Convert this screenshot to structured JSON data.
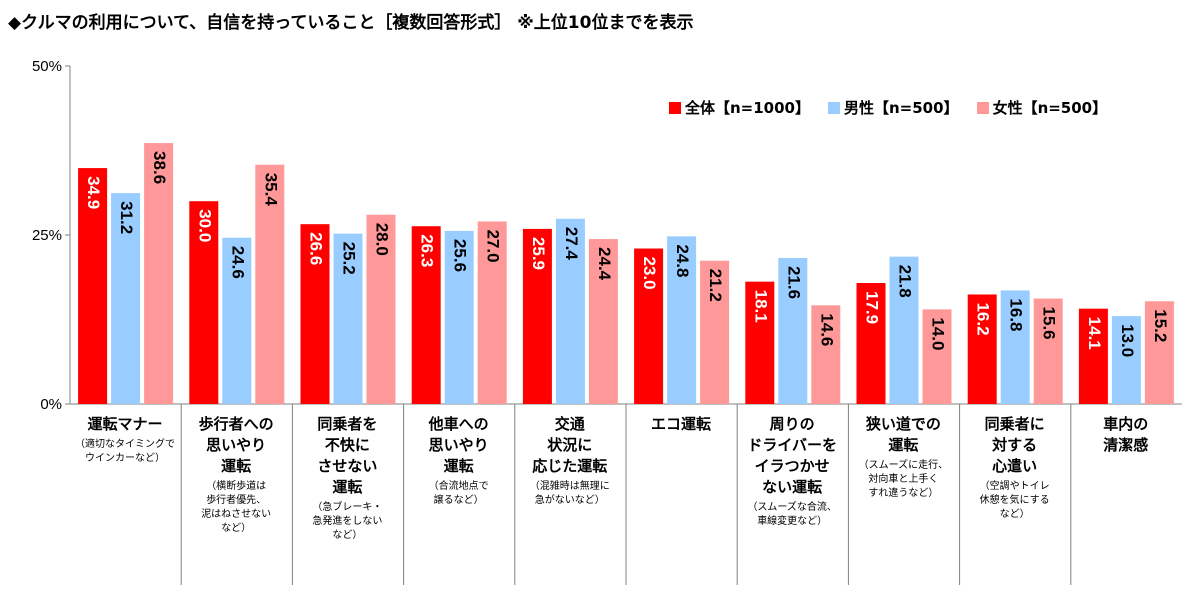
{
  "title": "◆クルマの利用について、自信を持っていること［複数回答形式］ ※上位10位までを表示",
  "colors": {
    "overall": "#ff0000",
    "male": "#99ccff",
    "female": "#ff9999",
    "axis": "#808080"
  },
  "chart_data": {
    "type": "bar",
    "ylim": [
      0,
      50
    ],
    "yticks": [
      "0%",
      "25%",
      "50%"
    ],
    "grid": false,
    "legend_position": "top-right",
    "categories": [
      "運転マナー",
      "歩行者への思いやり運転",
      "同乗者を不快にさせない運転",
      "他車への思いやり運転",
      "交通状況に応じた運転",
      "エコ運転",
      "周りのドライバーをイラつかせない運転",
      "狭い道での運転",
      "同乗者に対する心遣い",
      "車内の清潔感"
    ],
    "category_labels": [
      "運転マナー",
      "歩行者への\n思いやり\n運転",
      "同乗者を\n不快に\nさせない\n運転",
      "他車への\n思いやり\n運転",
      "交通\n状況に\n応じた運転",
      "エコ運転",
      "周りの\nドライバーを\nイラつかせ\nない運転",
      "狭い道での\n運転",
      "同乗者に\n対する\n心遣い",
      "車内の\n清潔感"
    ],
    "category_notes": [
      "（適切なタイミングで\nウインカーなど）",
      "（横断歩道は\n歩行者優先、\n泥はねさせない\nなど）",
      "（急ブレーキ・\n急発進をしない\nなど）",
      "（合流地点で\n譲るなど）",
      "（混雑時は無理に\n急がないなど）",
      "",
      "（スムーズな合流、\n車線変更など）",
      "（スムーズに走行、\n対向車と上手く\nすれ違うなど）",
      "（空調やトイレ\n休憩を気にする\nなど）",
      ""
    ],
    "series": [
      {
        "name": "全体【n=1000】",
        "values": [
          34.9,
          30.0,
          26.6,
          26.3,
          25.9,
          23.0,
          18.1,
          17.9,
          16.2,
          14.1
        ],
        "labels": [
          "34.9",
          "30.0",
          "26.6",
          "26.3",
          "25.9",
          "23.0",
          "18.1",
          "17.9",
          "16.2",
          "14.1"
        ]
      },
      {
        "name": "男性【n=500】",
        "values": [
          31.2,
          24.6,
          25.2,
          25.6,
          27.4,
          24.8,
          21.6,
          21.8,
          16.8,
          13.0
        ],
        "labels": [
          "31.2",
          "24.6",
          "25.2",
          "25.6",
          "27.4",
          "24.8",
          "21.6",
          "21.8",
          "16.8",
          "13.0"
        ]
      },
      {
        "name": "女性【n=500】",
        "values": [
          38.6,
          35.4,
          28.0,
          27.0,
          24.4,
          21.2,
          14.6,
          14.0,
          15.6,
          15.2
        ],
        "labels": [
          "38.6",
          "35.4",
          "28.0",
          "27.0",
          "24.4",
          "21.2",
          "14.6",
          "14.0",
          "15.6",
          "15.2"
        ]
      }
    ]
  }
}
